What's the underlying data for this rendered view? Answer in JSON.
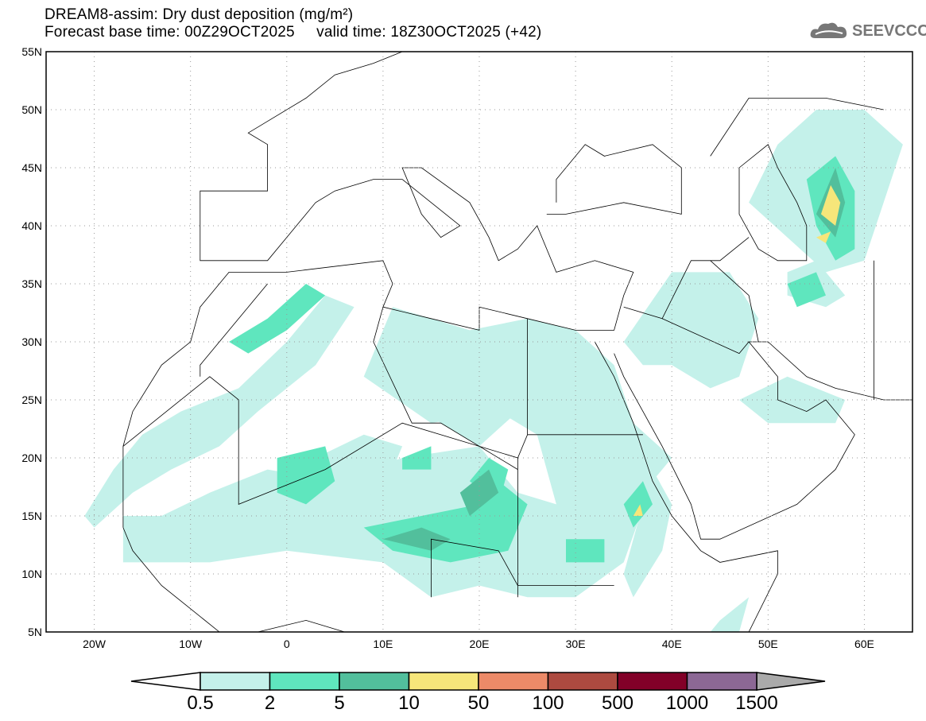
{
  "header": {
    "title": "DREAM8-assim: Dry dust deposition (mg/m²)",
    "subtitle": "Forecast base time: 00Z29OCT2025     valid time: 18Z30OCT2025 (+42)",
    "logo_text": "SEEVCCC",
    "logo_icon": "cloud-icon"
  },
  "map": {
    "lat_labels": [
      "55N",
      "50N",
      "45N",
      "40N",
      "35N",
      "30N",
      "25N",
      "20N",
      "15N",
      "10N",
      "5N"
    ],
    "lat_values": [
      55,
      50,
      45,
      40,
      35,
      30,
      25,
      20,
      15,
      10,
      5
    ],
    "lon_labels": [
      "20W",
      "10W",
      "0",
      "10E",
      "20E",
      "30E",
      "40E",
      "50E",
      "60E"
    ],
    "lon_values": [
      -20,
      -10,
      0,
      10,
      20,
      30,
      40,
      50,
      60
    ],
    "extent": {
      "lon": [
        -25,
        65
      ],
      "lat": [
        5,
        55
      ]
    }
  },
  "colorbar": {
    "labels": [
      "0.5",
      "2",
      "5",
      "10",
      "50",
      "100",
      "500",
      "1000",
      "1500"
    ],
    "colors": [
      "#c4f1ea",
      "#5fe6be",
      "#52bf9c",
      "#f6e67a",
      "#ec8a68",
      "#ad4a40",
      "#820028",
      "#8c6895"
    ],
    "under_color": "#ffffff",
    "over_color": "#aaaaaa"
  }
}
